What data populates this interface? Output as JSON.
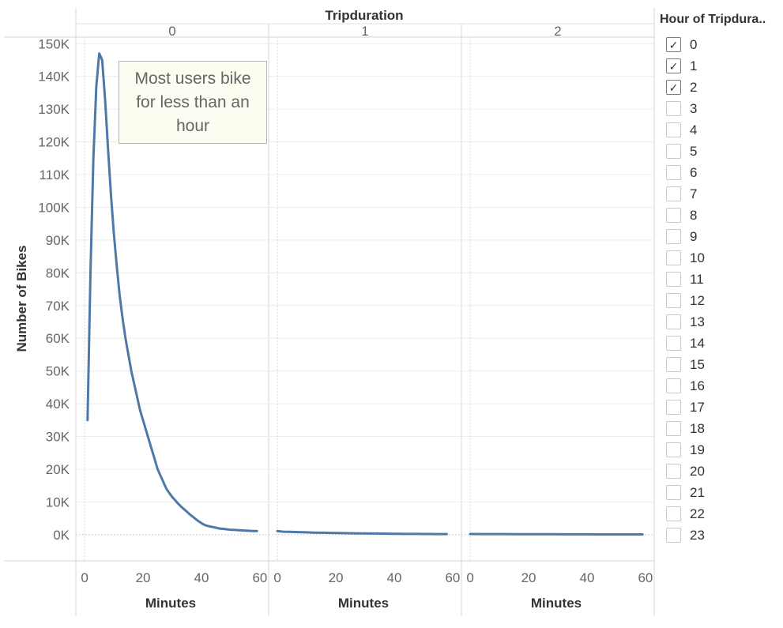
{
  "chart_data": {
    "type": "line",
    "column_header": "Tripduration",
    "ylabel": "Number of Bikes",
    "xlabel": "Minutes",
    "ylim": [
      -8000,
      152000
    ],
    "yticks": [
      0,
      10000,
      20000,
      30000,
      40000,
      50000,
      60000,
      70000,
      80000,
      90000,
      100000,
      110000,
      120000,
      130000,
      140000,
      150000
    ],
    "ytick_labels": [
      "0K",
      "10K",
      "20K",
      "30K",
      "40K",
      "50K",
      "60K",
      "70K",
      "80K",
      "90K",
      "100K",
      "110K",
      "120K",
      "130K",
      "140K",
      "150K"
    ],
    "xlim": [
      -3,
      63
    ],
    "xticks": [
      0,
      20,
      40,
      60
    ],
    "xtick_labels": [
      "0",
      "20",
      "40",
      "60"
    ],
    "line_color": "#4e79a7",
    "panels": [
      {
        "header": "0",
        "x": [
          1,
          2,
          3,
          4,
          5,
          6,
          7,
          8,
          9,
          10,
          11,
          12,
          13,
          14,
          15,
          16,
          17,
          18,
          19,
          20,
          21,
          22,
          23,
          24,
          25,
          26,
          27,
          28,
          29,
          30,
          31,
          32,
          33,
          34,
          35,
          36,
          37,
          38,
          39,
          40,
          41,
          42,
          43,
          44,
          45,
          46,
          47,
          48,
          49,
          50,
          51,
          52,
          53,
          54,
          55,
          56,
          57,
          58,
          59
        ],
        "values": [
          35000,
          80000,
          115000,
          137000,
          147000,
          145000,
          133000,
          118000,
          104000,
          92000,
          82000,
          73000,
          66000,
          60000,
          55000,
          50000,
          46000,
          42000,
          38000,
          35000,
          32000,
          29000,
          26000,
          23000,
          20000,
          18000,
          16000,
          14000,
          12700,
          11500,
          10500,
          9500,
          8600,
          7800,
          7000,
          6200,
          5500,
          4800,
          4100,
          3500,
          3000,
          2700,
          2500,
          2300,
          2100,
          1900,
          1800,
          1700,
          1600,
          1500,
          1450,
          1400,
          1350,
          1300,
          1250,
          1200,
          1150,
          1100,
          1100
        ]
      },
      {
        "header": "1",
        "x": [
          0,
          2,
          4,
          6,
          8,
          10,
          12,
          14,
          16,
          18,
          20,
          22,
          24,
          26,
          28,
          30,
          32,
          34,
          36,
          38,
          40,
          42,
          44,
          46,
          48,
          50,
          52,
          54,
          56,
          58
        ],
        "values": [
          1100,
          900,
          850,
          800,
          750,
          700,
          650,
          600,
          580,
          550,
          500,
          480,
          450,
          420,
          400,
          380,
          360,
          340,
          320,
          300,
          280,
          260,
          240,
          230,
          220,
          210,
          200,
          190,
          180,
          170
        ]
      },
      {
        "header": "2",
        "x": [
          0,
          4,
          8,
          12,
          16,
          20,
          24,
          28,
          32,
          36,
          40,
          44,
          48,
          52,
          56,
          59
        ],
        "values": [
          200,
          190,
          180,
          170,
          160,
          150,
          140,
          130,
          120,
          110,
          100,
          95,
          90,
          85,
          80,
          75
        ]
      }
    ],
    "annotation": "Most users bike for less than an hour"
  },
  "legend": {
    "title": "Hour of Tripdura..",
    "items": [
      {
        "label": "0",
        "checked": true
      },
      {
        "label": "1",
        "checked": true
      },
      {
        "label": "2",
        "checked": true
      },
      {
        "label": "3",
        "checked": false
      },
      {
        "label": "4",
        "checked": false
      },
      {
        "label": "5",
        "checked": false
      },
      {
        "label": "6",
        "checked": false
      },
      {
        "label": "7",
        "checked": false
      },
      {
        "label": "8",
        "checked": false
      },
      {
        "label": "9",
        "checked": false
      },
      {
        "label": "10",
        "checked": false
      },
      {
        "label": "11",
        "checked": false
      },
      {
        "label": "12",
        "checked": false
      },
      {
        "label": "13",
        "checked": false
      },
      {
        "label": "14",
        "checked": false
      },
      {
        "label": "15",
        "checked": false
      },
      {
        "label": "16",
        "checked": false
      },
      {
        "label": "17",
        "checked": false
      },
      {
        "label": "18",
        "checked": false
      },
      {
        "label": "19",
        "checked": false
      },
      {
        "label": "20",
        "checked": false
      },
      {
        "label": "21",
        "checked": false
      },
      {
        "label": "22",
        "checked": false
      },
      {
        "label": "23",
        "checked": false
      }
    ]
  }
}
